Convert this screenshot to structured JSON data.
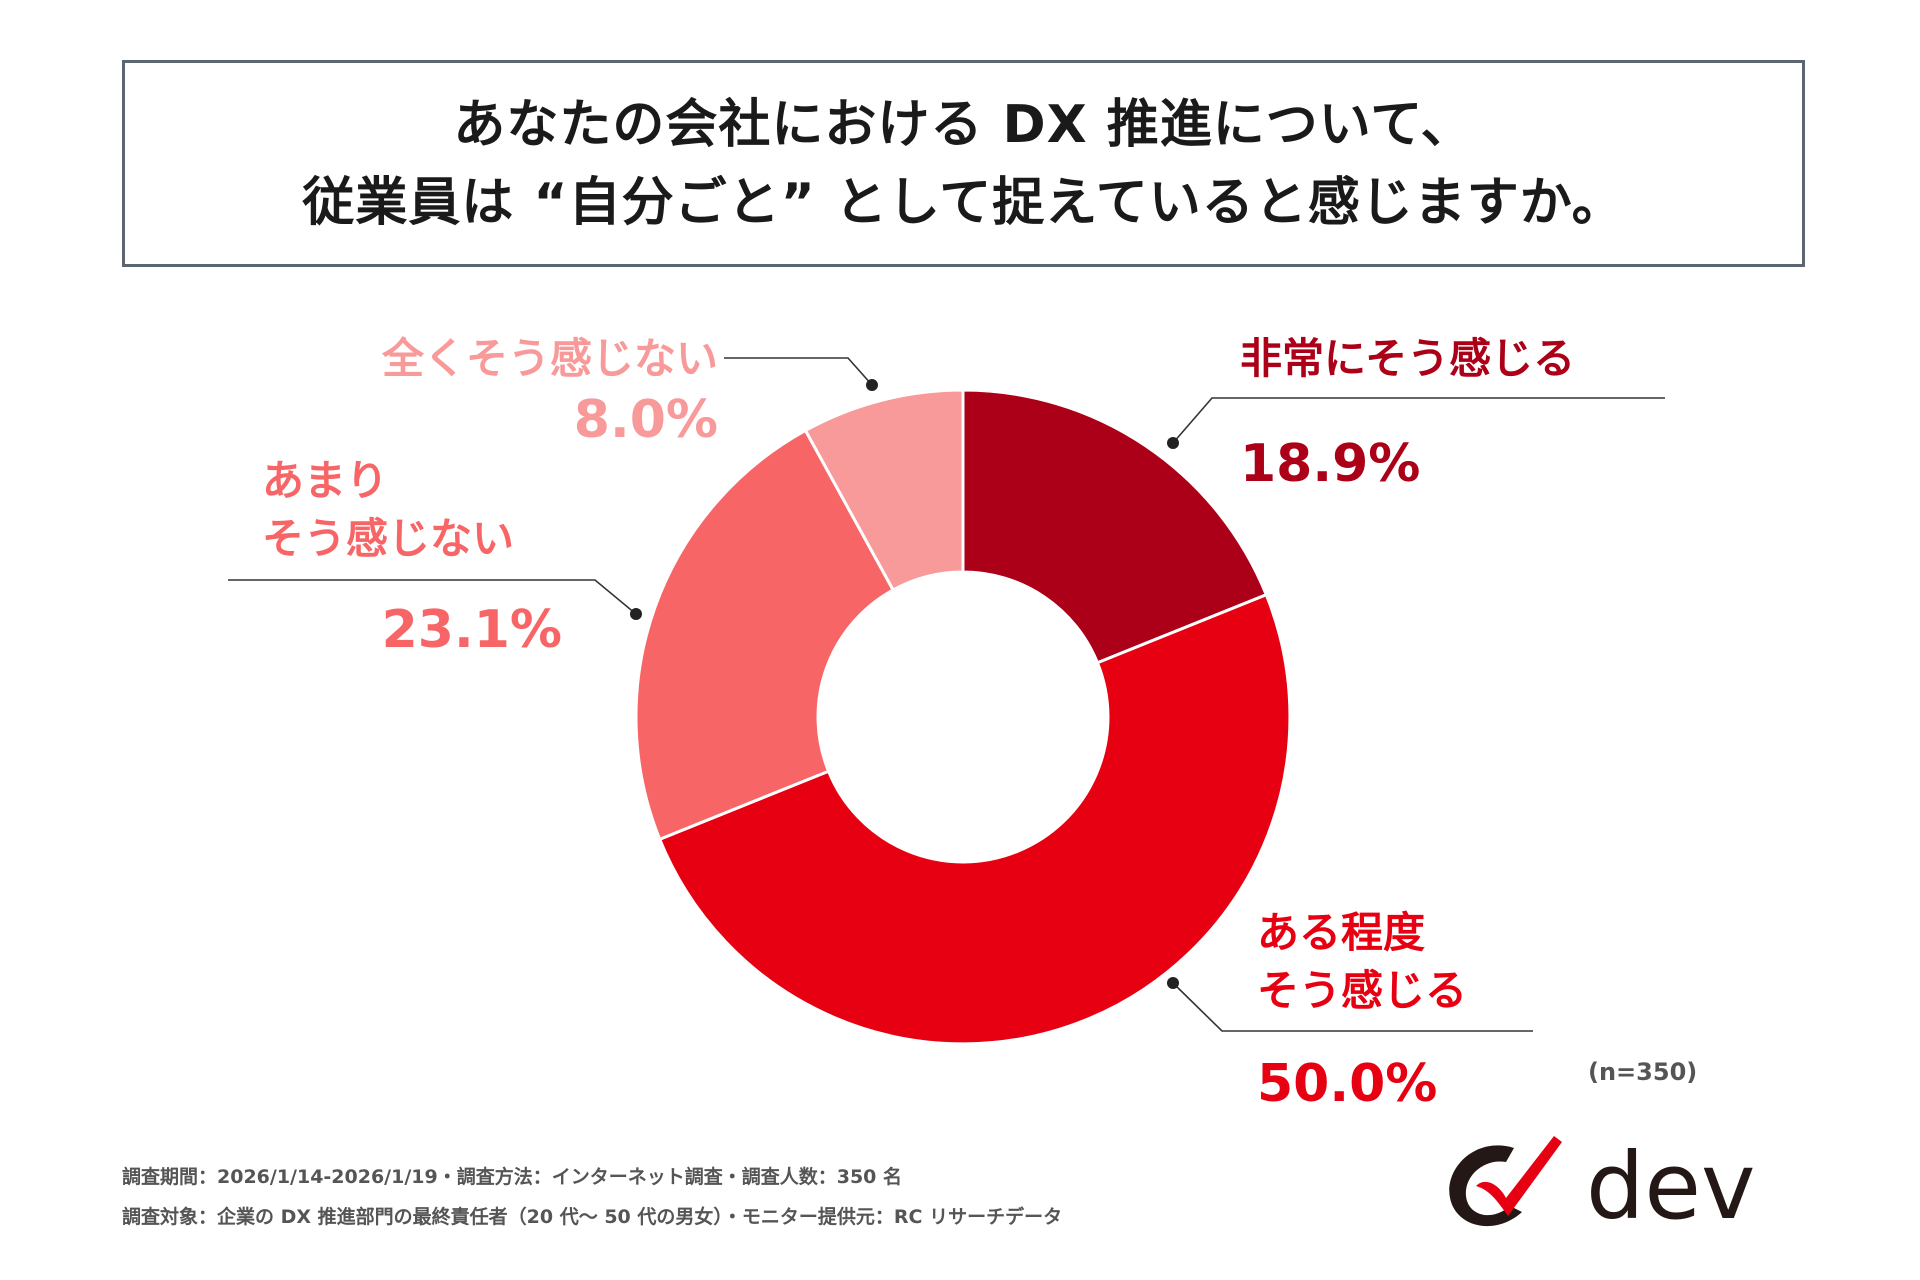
{
  "title": {
    "line1": "あなたの会社における DX 推進について、",
    "line2": "従業員は “自分ごと” として捉えていると感じますか。"
  },
  "chart_data": {
    "type": "pie",
    "donut": true,
    "slices": [
      {
        "label_lines": [
          "非常にそう感じる"
        ],
        "value": 18.9,
        "value_label": "18.9%",
        "color": "#ab0017"
      },
      {
        "label_lines": [
          "ある程度",
          "そう感じる"
        ],
        "value": 50.0,
        "value_label": "50.0%",
        "color": "#e60012"
      },
      {
        "label_lines": [
          "あまり",
          "そう感じない"
        ],
        "value": 23.1,
        "value_label": "23.1%",
        "color": "#f76566"
      },
      {
        "label_lines": [
          "全くそう感じない"
        ],
        "value": 8.0,
        "value_label": "8.0%",
        "color": "#f8999a"
      }
    ],
    "start": "top",
    "direction": "clockwise",
    "sample_note": "(n=350)"
  },
  "footer": {
    "line1": "調査期間：2026/1/14-2026/1/19・調査方法：インターネット調査・調査人数：350 名",
    "line2": "調査対象：企業の DX 推進部門の最終責任者（20 代〜 50 代の男女）・モニター提供元：RC リサーチデータ"
  },
  "logo": {
    "text": "dev",
    "icon": "dev-logo-swoosh-icon",
    "colors": {
      "dark": "#231815",
      "accent": "#e60012"
    }
  }
}
